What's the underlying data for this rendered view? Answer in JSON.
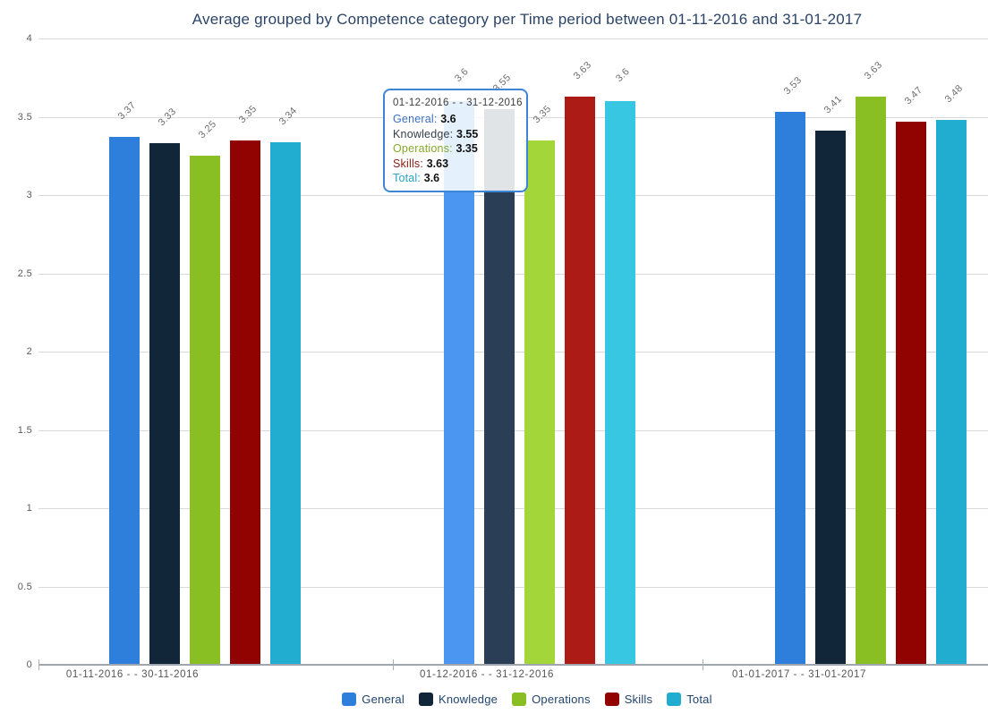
{
  "title": "Average grouped by Competence category per Time period between 01-11-2016 and 31-01-2017",
  "chart_data": {
    "type": "bar",
    "title": "Average grouped by Competence category per Time period between 01-11-2016 and 31-01-2017",
    "categories": [
      "01-11-2016 - - 30-11-2016",
      "01-12-2016 - - 31-12-2016",
      "01-01-2017 - - 31-01-2017"
    ],
    "series": [
      {
        "name": "General",
        "color": "#2e7edc",
        "hover_color": "#4b96f0",
        "values": [
          3.37,
          3.6,
          3.53
        ]
      },
      {
        "name": "Knowledge",
        "color": "#12263a",
        "hover_color": "#2a3f55",
        "values": [
          3.33,
          3.55,
          3.41
        ]
      },
      {
        "name": "Operations",
        "color": "#8abf23",
        "hover_color": "#a3d739",
        "values": [
          3.25,
          3.35,
          3.63
        ]
      },
      {
        "name": "Skills",
        "color": "#910301",
        "hover_color": "#ad1b17",
        "values": [
          3.35,
          3.63,
          3.47
        ]
      },
      {
        "name": "Total",
        "color": "#20adcf",
        "hover_color": "#38c7e3",
        "values": [
          3.34,
          3.6,
          3.48
        ]
      }
    ],
    "ylim": [
      0,
      4
    ],
    "ytick_step": 0.5,
    "ytick_labels": [
      "0",
      "0.5",
      "1",
      "1.5",
      "2",
      "2.5",
      "3",
      "3.5",
      "4"
    ],
    "grid": true,
    "legend_position": "bottom",
    "value_labels_rotated": true,
    "highlighted_category_index": 1
  },
  "tooltip": {
    "header": "01-12-2016 - - 31-12-2016",
    "rows": [
      {
        "label": "General",
        "value": "3.6",
        "color": "#3b6fc4"
      },
      {
        "label": "Knowledge",
        "value": "3.55",
        "color": "#343e49"
      },
      {
        "label": "Operations",
        "value": "3.35",
        "color": "#84a92d"
      },
      {
        "label": "Skills",
        "value": "3.63",
        "color": "#8e1b12"
      },
      {
        "label": "Total",
        "value": "3.6",
        "color": "#29a2c6"
      }
    ],
    "border_color": "#3d85d6"
  },
  "colors": {
    "title_text": "#2a4468",
    "axis_line": "#9fa6ad",
    "gridline": "#d9d9d9",
    "tick_label": "#5b5b5b",
    "value_label": "#6f6f6f",
    "legend_text": "#21456e"
  }
}
